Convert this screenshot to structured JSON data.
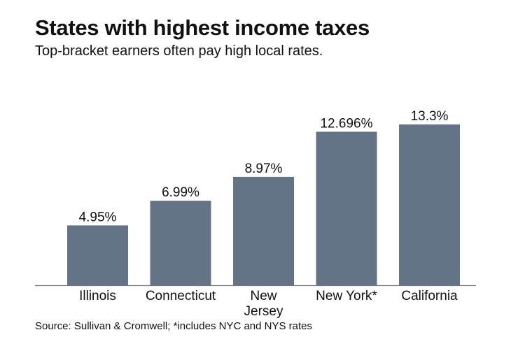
{
  "chart_data": {
    "type": "bar",
    "title": "States with highest income taxes",
    "subtitle": "Top-bracket earners often pay high local rates.",
    "categories": [
      [
        "Illinois"
      ],
      [
        "Connecticut"
      ],
      [
        "New",
        "Jersey"
      ],
      [
        "New York*"
      ],
      [
        "California"
      ]
    ],
    "values": [
      4.95,
      6.99,
      8.97,
      12.696,
      13.3
    ],
    "data_labels": [
      "4.95%",
      "6.99%",
      "8.97%",
      "12.696%",
      "13.3%"
    ],
    "xlabel": "",
    "ylabel": "",
    "ylim": [
      0,
      13.3
    ],
    "grid": false,
    "bar_color": "#647386",
    "source": "Source: Sullivan & Cromwell; *includes NYC and NYS rates"
  }
}
